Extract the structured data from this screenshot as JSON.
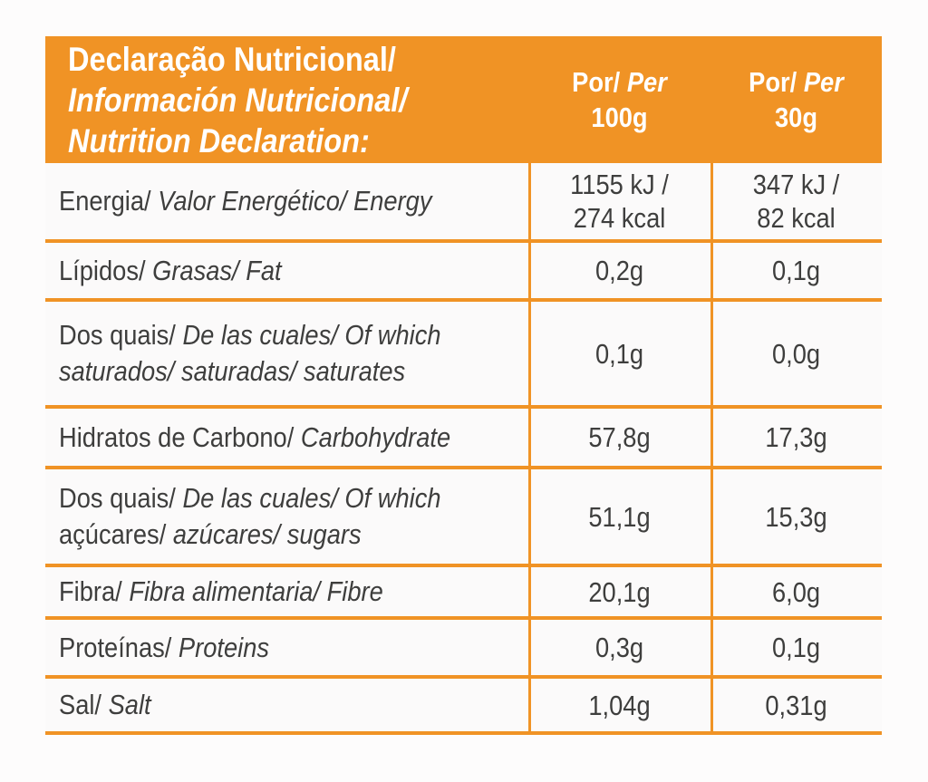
{
  "colors": {
    "accent_orange": "#F09325",
    "body_text": "#3E3E3D",
    "header_text": "#FFFFFF",
    "background": "#FDFCFC"
  },
  "header": {
    "title_lines": [
      "Declaração Nutricional/",
      "Información Nutricional/",
      "Nutrition Declaration:"
    ],
    "columns": [
      {
        "por": "Por/",
        "per": "Per",
        "amount": "100g"
      },
      {
        "por": "Por/",
        "per": "Per",
        "amount": "30g"
      }
    ]
  },
  "rows": [
    {
      "name": "energy",
      "label_lines": [
        [
          {
            "t": "Energia/",
            "i": false
          },
          {
            "t": " Valor Energético/ Energy",
            "i": true
          }
        ]
      ],
      "per_100g_lines": [
        "1155 kJ /",
        "274 kcal"
      ],
      "per_30g_lines": [
        "347 kJ /",
        "82 kcal"
      ]
    },
    {
      "name": "fat",
      "label_lines": [
        [
          {
            "t": "Lípidos/",
            "i": false
          },
          {
            "t": " Grasas/ Fat",
            "i": true
          }
        ]
      ],
      "per_100g_lines": [
        "0,2g"
      ],
      "per_30g_lines": [
        "0,1g"
      ]
    },
    {
      "name": "saturates",
      "label_lines": [
        [
          {
            "t": "Dos quais/",
            "i": false
          },
          {
            "t": " De las cuales/ Of which",
            "i": true
          }
        ],
        [
          {
            "t": "saturados/ saturadas/ saturates",
            "i": true
          }
        ]
      ],
      "per_100g_lines": [
        "0,1g"
      ],
      "per_30g_lines": [
        "0,0g"
      ]
    },
    {
      "name": "carbohydrate",
      "label_lines": [
        [
          {
            "t": "Hidratos de Carbono/",
            "i": false
          },
          {
            "t": " Carbohydrate",
            "i": true
          }
        ]
      ],
      "per_100g_lines": [
        "57,8g"
      ],
      "per_30g_lines": [
        "17,3g"
      ]
    },
    {
      "name": "sugars",
      "label_lines": [
        [
          {
            "t": "Dos quais/",
            "i": false
          },
          {
            "t": " De las cuales/ Of which",
            "i": true
          }
        ],
        [
          {
            "t": "açúcares/",
            "i": false
          },
          {
            "t": " azúcares/ sugars",
            "i": true
          }
        ]
      ],
      "per_100g_lines": [
        "51,1g"
      ],
      "per_30g_lines": [
        "15,3g"
      ]
    },
    {
      "name": "fibre",
      "label_lines": [
        [
          {
            "t": "Fibra/",
            "i": false
          },
          {
            "t": " Fibra alimentaria/ Fibre",
            "i": true
          }
        ]
      ],
      "per_100g_lines": [
        "20,1g"
      ],
      "per_30g_lines": [
        "6,0g"
      ]
    },
    {
      "name": "proteins",
      "label_lines": [
        [
          {
            "t": "Proteínas/",
            "i": false
          },
          {
            "t": " Proteins",
            "i": true
          }
        ]
      ],
      "per_100g_lines": [
        "0,3g"
      ],
      "per_30g_lines": [
        "0,1g"
      ]
    },
    {
      "name": "salt",
      "label_lines": [
        [
          {
            "t": "Sal/",
            "i": false
          },
          {
            "t": " Salt",
            "i": true
          }
        ]
      ],
      "per_100g_lines": [
        "1,04g"
      ],
      "per_30g_lines": [
        "0,31g"
      ]
    }
  ]
}
